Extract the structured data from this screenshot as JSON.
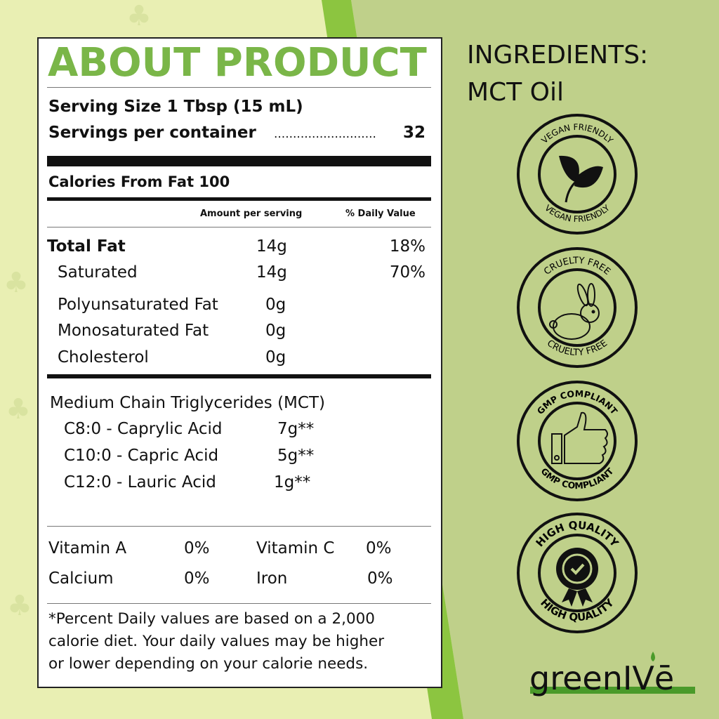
{
  "label": {
    "title": "ABOUT PRODUCT",
    "serving_size": "Serving Size 1 Tbsp (15 mL)",
    "servings_per_container_label": "Servings per container",
    "servings_per_container_dots": "...........................",
    "servings_per_container_value": "32",
    "calories_from_fat": "Calories From Fat 100",
    "col_amount": "Amount per serving",
    "col_daily": "% Daily Value",
    "nutrients": [
      {
        "name": "Total Fat",
        "amount": "14g",
        "daily": "18%"
      },
      {
        "name": "Saturated",
        "amount": "14g",
        "daily": "70%"
      },
      {
        "name": "Polyunsaturated Fat",
        "amount": "0g",
        "daily": ""
      },
      {
        "name": "Monosaturated Fat",
        "amount": "0g",
        "daily": ""
      },
      {
        "name": "Cholesterol",
        "amount": "0g",
        "daily": ""
      }
    ],
    "mct_heading": "Medium Chain Triglycerides (MCT)",
    "mct": [
      {
        "name": "C8:0 - Caprylic Acid",
        "amount": "7g**"
      },
      {
        "name": "C10:0 - Capric Acid",
        "amount": "5g**"
      },
      {
        "name": "C12:0 - Lauric Acid",
        "amount": "1g**"
      }
    ],
    "vitamins": [
      {
        "name": "Vitamin A",
        "value": "0%"
      },
      {
        "name": "Vitamin C",
        "value": "0%"
      },
      {
        "name": "Calcium",
        "value": "0%"
      },
      {
        "name": "Iron",
        "value": "0%"
      }
    ],
    "footnote": [
      "*Percent Daily values are based on a 2,000",
      "calorie diet. Your daily values may be higher",
      "or lower depending on your calorie needs."
    ]
  },
  "ingredients": {
    "heading": "INGREDIENTS:",
    "value": "MCT Oil"
  },
  "badges": [
    {
      "text": "VEGAN FRIENDLY",
      "icon": "leaf-icon"
    },
    {
      "text": "CRUELTY FREE",
      "icon": "rabbit-icon"
    },
    {
      "text": "GMP COMPLIANT",
      "icon": "thumbs-up-icon"
    },
    {
      "text": "HIGH QUALITY",
      "icon": "award-seal-icon"
    }
  ],
  "brand": "greenIVē",
  "colors": {
    "title_green": "#7ab648",
    "left_bg": "#e9efb3",
    "right_bg": "#bfd08a",
    "stripe": "#8cc540"
  }
}
